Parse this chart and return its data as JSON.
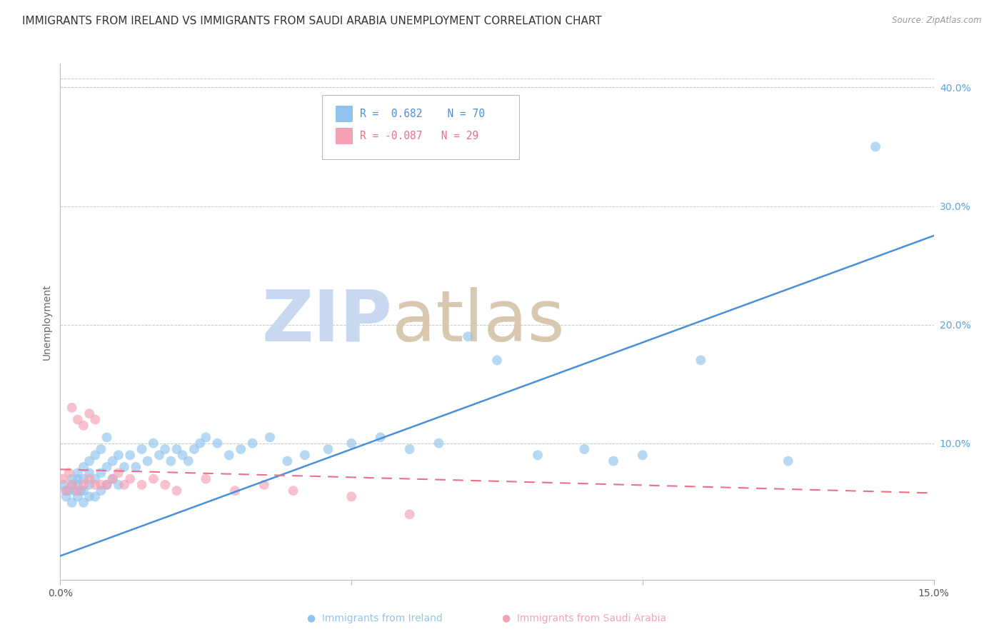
{
  "title": "IMMIGRANTS FROM IRELAND VS IMMIGRANTS FROM SAUDI ARABIA UNEMPLOYMENT CORRELATION CHART",
  "source": "Source: ZipAtlas.com",
  "ylabel": "Unemployment",
  "x_min": 0.0,
  "x_max": 0.15,
  "y_min": -0.015,
  "y_max": 0.42,
  "y_ticks": [
    0.1,
    0.2,
    0.3,
    0.4
  ],
  "y_tick_labels": [
    "10.0%",
    "20.0%",
    "30.0%",
    "40.0%"
  ],
  "x_ticks": [
    0.0,
    0.05,
    0.1,
    0.15
  ],
  "x_tick_labels": [
    "0.0%",
    "",
    "",
    "15.0%"
  ],
  "ireland_color": "#90C4EE",
  "saudi_color": "#F4A0B5",
  "ireland_line_color": "#4A90D9",
  "saudi_line_color": "#E8708A",
  "right_axis_color": "#5BA3D9",
  "watermark_zip_color": "#C8D8F0",
  "watermark_atlas_color": "#D8C8B0",
  "ireland_R": 0.682,
  "ireland_N": 70,
  "saudi_R": -0.087,
  "saudi_N": 29,
  "ireland_x": [
    0.0005,
    0.001,
    0.001,
    0.0015,
    0.002,
    0.002,
    0.002,
    0.0025,
    0.003,
    0.003,
    0.003,
    0.003,
    0.0035,
    0.004,
    0.004,
    0.004,
    0.004,
    0.005,
    0.005,
    0.005,
    0.005,
    0.006,
    0.006,
    0.006,
    0.007,
    0.007,
    0.007,
    0.008,
    0.008,
    0.008,
    0.009,
    0.009,
    0.01,
    0.01,
    0.011,
    0.012,
    0.013,
    0.014,
    0.015,
    0.016,
    0.017,
    0.018,
    0.019,
    0.02,
    0.021,
    0.022,
    0.023,
    0.024,
    0.025,
    0.027,
    0.029,
    0.031,
    0.033,
    0.036,
    0.039,
    0.042,
    0.046,
    0.05,
    0.055,
    0.06,
    0.065,
    0.07,
    0.075,
    0.082,
    0.09,
    0.095,
    0.1,
    0.11,
    0.125,
    0.14
  ],
  "ireland_y": [
    0.065,
    0.055,
    0.06,
    0.06,
    0.05,
    0.065,
    0.07,
    0.06,
    0.055,
    0.065,
    0.07,
    0.075,
    0.06,
    0.05,
    0.06,
    0.07,
    0.08,
    0.055,
    0.065,
    0.075,
    0.085,
    0.055,
    0.07,
    0.09,
    0.06,
    0.075,
    0.095,
    0.065,
    0.08,
    0.105,
    0.07,
    0.085,
    0.065,
    0.09,
    0.08,
    0.09,
    0.08,
    0.095,
    0.085,
    0.1,
    0.09,
    0.095,
    0.085,
    0.095,
    0.09,
    0.085,
    0.095,
    0.1,
    0.105,
    0.1,
    0.09,
    0.095,
    0.1,
    0.105,
    0.085,
    0.09,
    0.095,
    0.1,
    0.105,
    0.095,
    0.1,
    0.19,
    0.17,
    0.09,
    0.095,
    0.085,
    0.09,
    0.17,
    0.085,
    0.35
  ],
  "saudi_x": [
    0.0005,
    0.001,
    0.0015,
    0.002,
    0.002,
    0.003,
    0.003,
    0.004,
    0.004,
    0.005,
    0.005,
    0.006,
    0.006,
    0.007,
    0.008,
    0.009,
    0.01,
    0.011,
    0.012,
    0.014,
    0.016,
    0.018,
    0.02,
    0.025,
    0.03,
    0.035,
    0.04,
    0.05,
    0.06
  ],
  "saudi_y": [
    0.07,
    0.06,
    0.075,
    0.065,
    0.13,
    0.06,
    0.12,
    0.065,
    0.115,
    0.07,
    0.125,
    0.065,
    0.12,
    0.065,
    0.065,
    0.07,
    0.075,
    0.065,
    0.07,
    0.065,
    0.07,
    0.065,
    0.06,
    0.07,
    0.06,
    0.065,
    0.06,
    0.055,
    0.04
  ],
  "ireland_trend_x0": 0.0,
  "ireland_trend_x1": 0.15,
  "ireland_trend_y0": 0.005,
  "ireland_trend_y1": 0.275,
  "saudi_trend_x0": 0.0,
  "saudi_trend_x1": 0.15,
  "saudi_trend_y0": 0.078,
  "saudi_trend_y1": 0.058,
  "background_color": "#FFFFFF",
  "grid_color": "#BBBBBB",
  "title_fontsize": 11,
  "axis_label_fontsize": 10,
  "tick_fontsize": 10,
  "watermark_fontsize": 72
}
